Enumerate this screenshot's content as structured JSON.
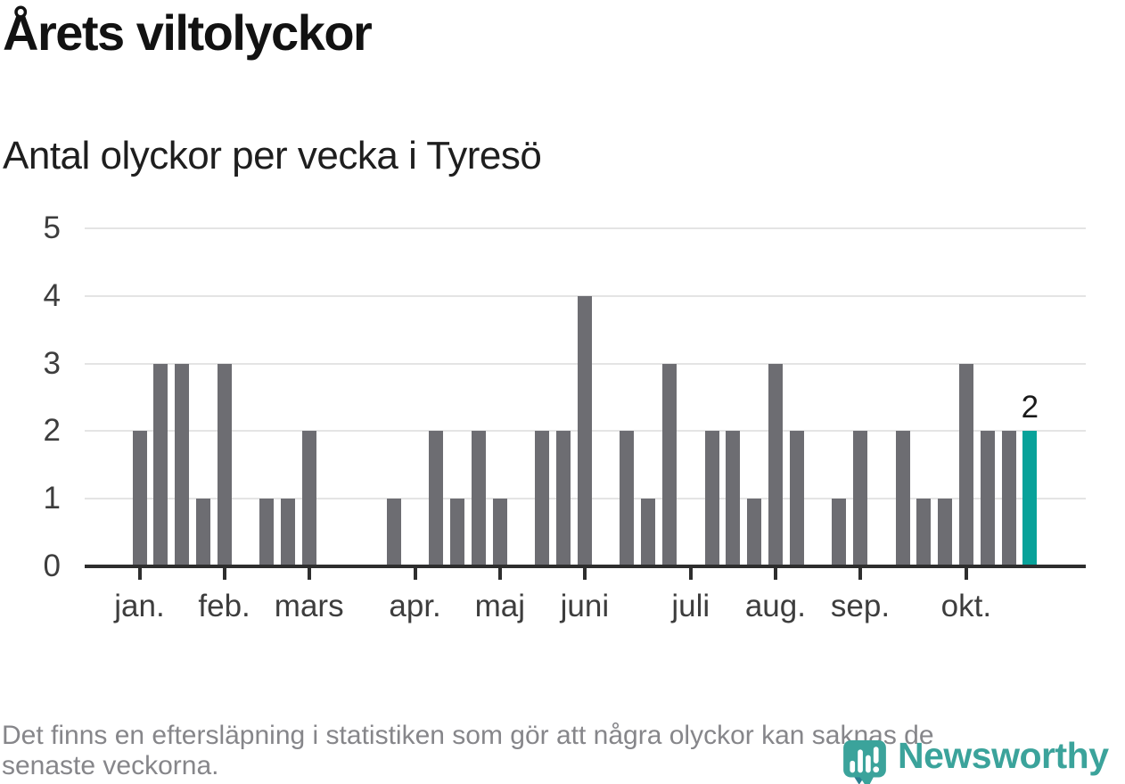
{
  "chart_data": {
    "type": "bar",
    "title": "Årets viltolyckor",
    "subtitle": "Antal olyckor per vecka i Tyresö",
    "x_unit": "week",
    "week_start": 1,
    "n_weeks": 43,
    "values": [
      2,
      3,
      3,
      1,
      3,
      0,
      1,
      1,
      2,
      0,
      0,
      0,
      1,
      0,
      2,
      1,
      2,
      1,
      0,
      2,
      2,
      4,
      0,
      2,
      1,
      3,
      0,
      2,
      2,
      1,
      3,
      2,
      0,
      1,
      2,
      0,
      2,
      1,
      1,
      3,
      2,
      2,
      2
    ],
    "highlight_last": true,
    "annotation": {
      "text": "2",
      "week": 43
    },
    "y_ticks": [
      0,
      1,
      2,
      3,
      4,
      5
    ],
    "ylim": [
      0,
      5
    ],
    "grid": true,
    "month_ticks": [
      {
        "label": "jan.",
        "week": 1
      },
      {
        "label": "feb.",
        "week": 5
      },
      {
        "label": "mars",
        "week": 9
      },
      {
        "label": "apr.",
        "week": 14
      },
      {
        "label": "maj",
        "week": 18
      },
      {
        "label": "juni",
        "week": 22
      },
      {
        "label": "juli",
        "week": 27
      },
      {
        "label": "aug.",
        "week": 31
      },
      {
        "label": "sep.",
        "week": 35
      },
      {
        "label": "okt.",
        "week": 40
      }
    ],
    "colors": {
      "bar": "#6d6d72",
      "highlight": "#08a29a",
      "grid": "#e4e4e4",
      "axis": "#2e2e2e",
      "tick_label": "#3d3d3d",
      "annotation": "#1a1a1a"
    }
  },
  "footer": {
    "lines": [
      "Det finns en eftersläpning i statistiken som gör att några olyckor kan saknas de",
      "senaste veckorna."
    ]
  },
  "logo": {
    "text": "Newsworthy",
    "icon": "newsworthy-bubble-chart-icon",
    "colors": {
      "main": "#3ba39b",
      "shadow": "#2b7e90",
      "glyph": "#ffffff"
    }
  }
}
